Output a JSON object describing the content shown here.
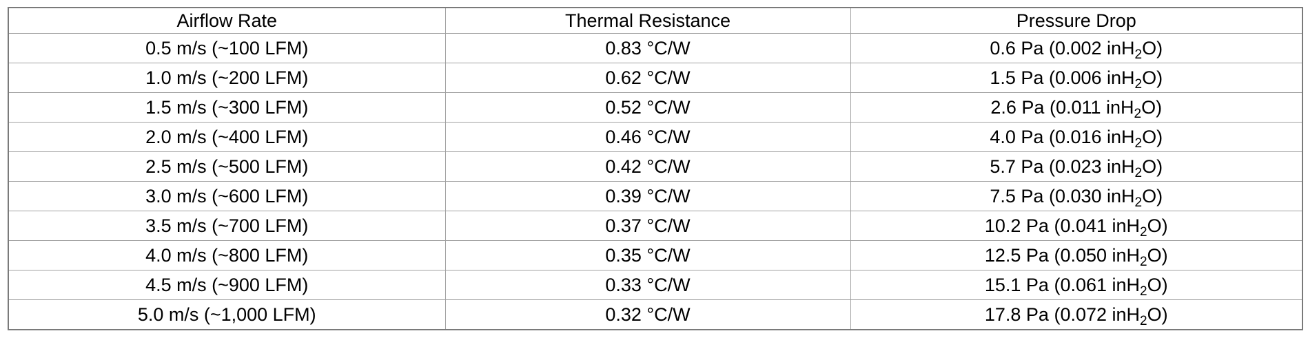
{
  "table": {
    "headers": [
      "Airflow Rate",
      "Thermal Resistance",
      "Pressure Drop"
    ],
    "rows": [
      {
        "airflow": "0.5 m/s (~100 LFM)",
        "resistance": "0.83 °C/W",
        "pressure_pre": "0.6 Pa (0.002 inH",
        "pressure_sub": "2",
        "pressure_post": "O)"
      },
      {
        "airflow": "1.0 m/s (~200 LFM)",
        "resistance": "0.62 °C/W",
        "pressure_pre": "1.5 Pa (0.006 inH",
        "pressure_sub": "2",
        "pressure_post": "O)"
      },
      {
        "airflow": "1.5 m/s (~300 LFM)",
        "resistance": "0.52 °C/W",
        "pressure_pre": "2.6 Pa (0.011 inH",
        "pressure_sub": "2",
        "pressure_post": "O)"
      },
      {
        "airflow": "2.0 m/s (~400 LFM)",
        "resistance": "0.46 °C/W",
        "pressure_pre": "4.0 Pa (0.016 inH",
        "pressure_sub": "2",
        "pressure_post": "O)"
      },
      {
        "airflow": "2.5 m/s (~500 LFM)",
        "resistance": "0.42 °C/W",
        "pressure_pre": "5.7 Pa (0.023 inH",
        "pressure_sub": "2",
        "pressure_post": "O)"
      },
      {
        "airflow": "3.0 m/s (~600 LFM)",
        "resistance": "0.39 °C/W",
        "pressure_pre": "7.5 Pa (0.030 inH",
        "pressure_sub": "2",
        "pressure_post": "O)"
      },
      {
        "airflow": "3.5 m/s (~700 LFM)",
        "resistance": "0.37 °C/W",
        "pressure_pre": "10.2 Pa (0.041 inH",
        "pressure_sub": "2",
        "pressure_post": "O)"
      },
      {
        "airflow": "4.0 m/s (~800 LFM)",
        "resistance": "0.35 °C/W",
        "pressure_pre": "12.5 Pa (0.050 inH",
        "pressure_sub": "2",
        "pressure_post": "O)"
      },
      {
        "airflow": "4.5 m/s (~900 LFM)",
        "resistance": "0.33 °C/W",
        "pressure_pre": "15.1 Pa (0.061 inH",
        "pressure_sub": "2",
        "pressure_post": "O)"
      },
      {
        "airflow": "5.0 m/s (~1,000 LFM)",
        "resistance": "0.32 °C/W",
        "pressure_pre": "17.8 Pa (0.072 inH",
        "pressure_sub": "2",
        "pressure_post": "O)"
      }
    ]
  }
}
